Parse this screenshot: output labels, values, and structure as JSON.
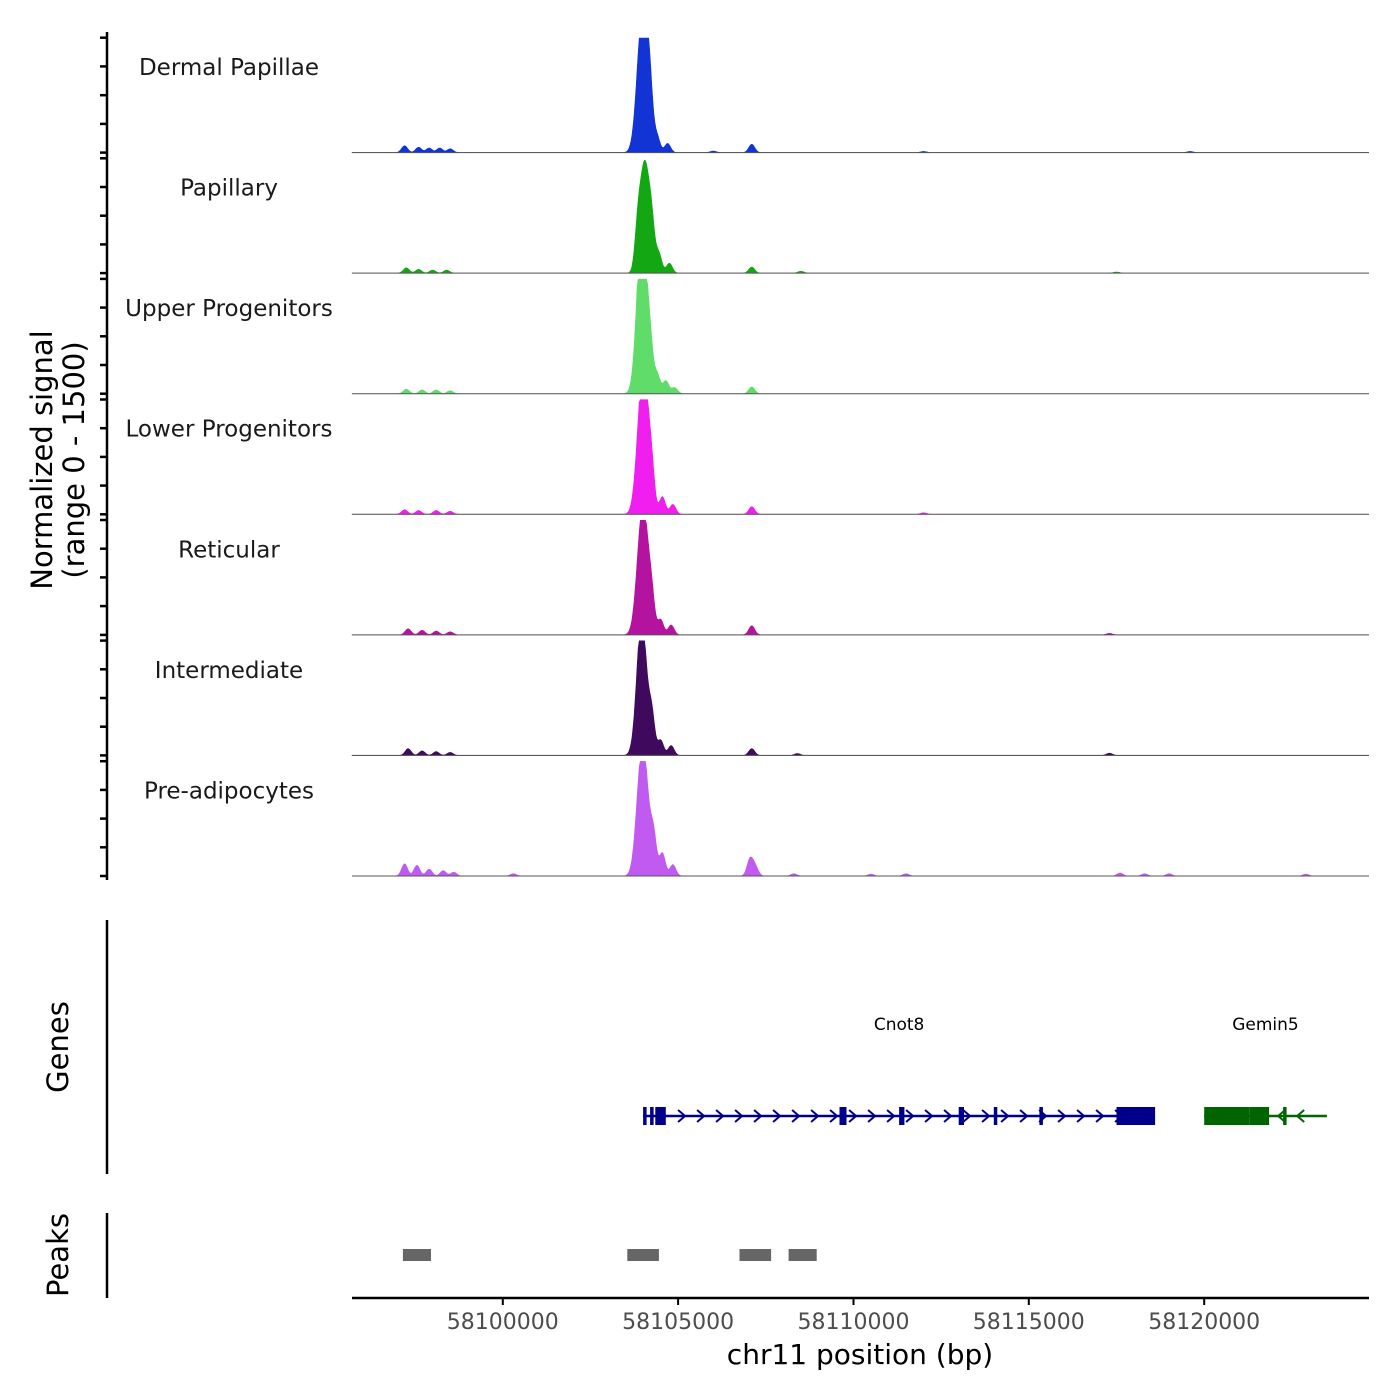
{
  "chart_data": {
    "type": "area",
    "title": "",
    "signal_axis_label": [
      "Normalized signal",
      "(range 0 - 1500)"
    ],
    "signal_range": [
      0,
      1500
    ],
    "xlabel": "chr11 position (bp)",
    "xlim": [
      58095700,
      58124700
    ],
    "x_ticks": [
      58100000,
      58105000,
      58110000,
      58115000,
      58120000
    ],
    "x_tick_labels": [
      "58100000",
      "58105000",
      "58110000",
      "58115000",
      "58120000"
    ],
    "tracks": [
      {
        "name": "Dermal Papillae",
        "color": "#1234d4",
        "peaks": [
          [
            58097200,
            90
          ],
          [
            58097600,
            70
          ],
          [
            58097900,
            60
          ],
          [
            58098200,
            60
          ],
          [
            58098500,
            50
          ],
          [
            58103900,
            900
          ],
          [
            58104050,
            1400
          ],
          [
            58104200,
            500
          ],
          [
            58104400,
            200
          ],
          [
            58104700,
            120
          ],
          [
            58107100,
            110
          ],
          [
            58106000,
            20
          ],
          [
            58112000,
            15
          ],
          [
            58119600,
            15
          ]
        ]
      },
      {
        "name": "Papillary",
        "color": "#13a813",
        "peaks": [
          [
            58097250,
            70
          ],
          [
            58097600,
            50
          ],
          [
            58098000,
            40
          ],
          [
            58098400,
            40
          ],
          [
            58103850,
            500
          ],
          [
            58104050,
            1420
          ],
          [
            58104250,
            500
          ],
          [
            58104450,
            250
          ],
          [
            58104750,
            130
          ],
          [
            58107100,
            80
          ],
          [
            58108500,
            25
          ],
          [
            58117500,
            15
          ]
        ]
      },
      {
        "name": "Upper Progenitors",
        "color": "#5fdc6a",
        "peaks": [
          [
            58097250,
            60
          ],
          [
            58097700,
            50
          ],
          [
            58098100,
            50
          ],
          [
            58098500,
            40
          ],
          [
            58103900,
            900
          ],
          [
            58104000,
            1520
          ],
          [
            58104200,
            500
          ],
          [
            58104400,
            250
          ],
          [
            58104650,
            170
          ],
          [
            58104900,
            80
          ],
          [
            58107100,
            90
          ]
        ]
      },
      {
        "name": "Lower Progenitors",
        "color": "#f11ef0",
        "peaks": [
          [
            58097200,
            60
          ],
          [
            58097600,
            50
          ],
          [
            58098100,
            50
          ],
          [
            58098500,
            40
          ],
          [
            58103900,
            800
          ],
          [
            58104050,
            1480
          ],
          [
            58104250,
            450
          ],
          [
            58104550,
            230
          ],
          [
            58104850,
            130
          ],
          [
            58107100,
            100
          ],
          [
            58112000,
            20
          ]
        ]
      },
      {
        "name": "Reticular",
        "color": "#b3139f",
        "peaks": [
          [
            58097300,
            80
          ],
          [
            58097700,
            60
          ],
          [
            58098100,
            50
          ],
          [
            58098500,
            40
          ],
          [
            58103900,
            800
          ],
          [
            58104050,
            1220
          ],
          [
            58104250,
            400
          ],
          [
            58104500,
            200
          ],
          [
            58104800,
            130
          ],
          [
            58107100,
            120
          ],
          [
            58117300,
            20
          ]
        ]
      },
      {
        "name": "Intermediate",
        "color": "#3f0a5e",
        "peaks": [
          [
            58097300,
            90
          ],
          [
            58097700,
            60
          ],
          [
            58098100,
            50
          ],
          [
            58098500,
            40
          ],
          [
            58103900,
            800
          ],
          [
            58104000,
            1180
          ],
          [
            58104250,
            500
          ],
          [
            58104500,
            200
          ],
          [
            58104800,
            130
          ],
          [
            58107100,
            90
          ],
          [
            58108400,
            25
          ],
          [
            58117300,
            30
          ]
        ]
      },
      {
        "name": "Pre-adipocytes",
        "color": "#c05af0",
        "peaks": [
          [
            58097200,
            160
          ],
          [
            58097550,
            140
          ],
          [
            58097900,
            90
          ],
          [
            58098300,
            70
          ],
          [
            58098600,
            50
          ],
          [
            58100300,
            30
          ],
          [
            58103900,
            900
          ],
          [
            58104050,
            1180
          ],
          [
            58104300,
            500
          ],
          [
            58104550,
            300
          ],
          [
            58104850,
            150
          ],
          [
            58107050,
            220
          ],
          [
            58107200,
            120
          ],
          [
            58108300,
            30
          ],
          [
            58110500,
            25
          ],
          [
            58111500,
            30
          ],
          [
            58117600,
            40
          ],
          [
            58118300,
            30
          ],
          [
            58119000,
            30
          ],
          [
            58122900,
            25
          ]
        ]
      }
    ],
    "genes_label": "Genes",
    "genes": [
      {
        "name": "Cnot8",
        "strand": "+",
        "color": "#00008b",
        "start": 58104000,
        "end": 58118600,
        "exons": [
          [
            58104000,
            58104100
          ],
          [
            58104200,
            58104300
          ],
          [
            58104350,
            58104650
          ],
          [
            58109600,
            58109800
          ],
          [
            58111300,
            58111450
          ],
          [
            58113000,
            58113150
          ],
          [
            58114000,
            58114100
          ],
          [
            58115300,
            58115400
          ],
          [
            58117500,
            58118600
          ]
        ]
      },
      {
        "name": "Gemin5",
        "strand": "-",
        "color": "#006400",
        "start": 58120000,
        "end": 58123500,
        "exons": [
          [
            58120000,
            58121300
          ],
          [
            58121300,
            58121850
          ],
          [
            58122250,
            58122350
          ]
        ]
      }
    ],
    "peaks_label": "Peaks",
    "peak_regions": [
      [
        58097150,
        58097950
      ],
      [
        58103550,
        58104450
      ],
      [
        58106750,
        58107650
      ],
      [
        58108150,
        58108950
      ]
    ]
  }
}
